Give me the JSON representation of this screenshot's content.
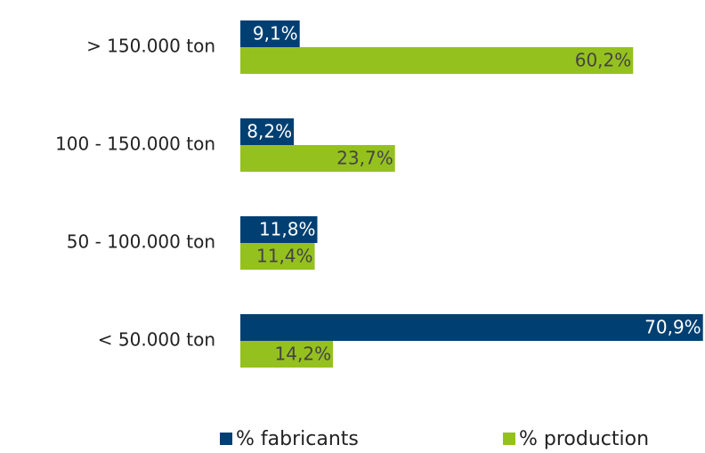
{
  "chart_data": {
    "type": "hbar",
    "categories": [
      "> 150.000 ton",
      "100 - 150.000 ton",
      "50 - 100.000 ton",
      "< 50.000 ton"
    ],
    "series": [
      {
        "name": "% fabricants",
        "color": "#003f72",
        "values": [
          9.1,
          8.2,
          11.8,
          70.9
        ],
        "value_labels": [
          "9,1%",
          "8,2%",
          "11,8%",
          "70,9%"
        ]
      },
      {
        "name": "% production",
        "color": "#95c11f",
        "values": [
          60.2,
          23.7,
          11.4,
          14.2
        ],
        "value_labels": [
          "60,2%",
          "23,7%",
          "11,4%",
          "14,2%"
        ]
      }
    ],
    "legend": "bottom"
  }
}
